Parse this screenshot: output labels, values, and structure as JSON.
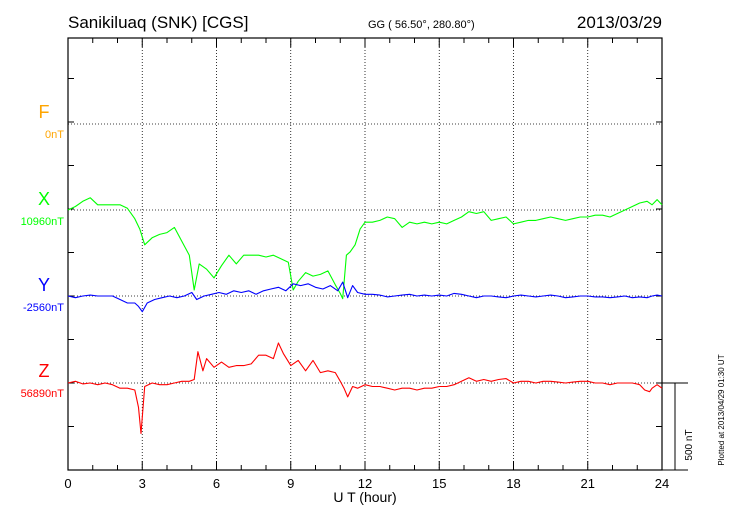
{
  "header": {
    "station": "Sanikiluaq (SNK)  [CGS]",
    "coords": "GG ( 56.50°, 280.80°)",
    "date": "2013/03/29"
  },
  "footer": {
    "plotted": "Plotted at 2013/04/29 01:30 UT",
    "scale_label": "500 nT"
  },
  "chart_data": {
    "type": "line",
    "xlabel": "U T (hour)",
    "xlim": [
      0,
      24
    ],
    "xticks": [
      0,
      3,
      6,
      9,
      12,
      15,
      18,
      21,
      24
    ],
    "grid": true,
    "scale_bar_nT": 500,
    "series": [
      {
        "name": "F",
        "baseline_label": "0nT",
        "color": "#ffa500",
        "baseline_nT": 0,
        "x": [],
        "y": []
      },
      {
        "name": "X",
        "baseline_label": "10960nT",
        "color": "#00ff00",
        "baseline_nT": 10960,
        "x": [
          0,
          0.3,
          0.6,
          0.9,
          1.2,
          1.5,
          1.8,
          2.1,
          2.4,
          2.7,
          2.9,
          3.1,
          3.4,
          3.7,
          4.0,
          4.3,
          4.6,
          4.9,
          5.1,
          5.3,
          5.6,
          5.9,
          6.2,
          6.5,
          6.8,
          7.1,
          7.4,
          7.7,
          8.0,
          8.3,
          8.6,
          8.9,
          9.1,
          9.3,
          9.6,
          9.9,
          10.2,
          10.5,
          10.8,
          11.0,
          11.1,
          11.25,
          11.4,
          11.6,
          11.8,
          12.0,
          12.3,
          12.6,
          12.9,
          13.2,
          13.5,
          13.8,
          14.1,
          14.4,
          14.7,
          15.0,
          15.3,
          15.6,
          15.9,
          16.2,
          16.5,
          16.8,
          17.1,
          17.4,
          17.7,
          18.0,
          18.3,
          18.6,
          18.9,
          19.2,
          19.5,
          19.8,
          20.1,
          20.4,
          20.7,
          21.0,
          21.3,
          21.6,
          21.9,
          22.2,
          22.5,
          22.8,
          23.1,
          23.4,
          23.6,
          23.8,
          24.0
        ],
        "y": [
          10960,
          10980,
          11010,
          11030,
          10990,
          10990,
          10990,
          10990,
          10970,
          10910,
          10850,
          10760,
          10800,
          10820,
          10830,
          10860,
          10780,
          10700,
          10500,
          10650,
          10620,
          10570,
          10640,
          10700,
          10650,
          10700,
          10700,
          10700,
          10690,
          10700,
          10680,
          10660,
          10500,
          10550,
          10600,
          10580,
          10590,
          10610,
          10530,
          10480,
          10450,
          10700,
          10720,
          10760,
          10850,
          10890,
          10890,
          10900,
          10920,
          10910,
          10860,
          10890,
          10880,
          10890,
          10880,
          10890,
          10880,
          10900,
          10920,
          10950,
          10940,
          10950,
          10900,
          10910,
          10920,
          10880,
          10890,
          10900,
          10900,
          10910,
          10920,
          10910,
          10900,
          10910,
          10920,
          10920,
          10930,
          10930,
          10920,
          10940,
          10960,
          10980,
          11000,
          11010,
          10990,
          11020,
          10990
        ]
      },
      {
        "name": "Y",
        "baseline_label": "-2560nT",
        "color": "#0000ff",
        "baseline_nT": -2560,
        "x": [
          0,
          0.3,
          0.6,
          0.9,
          1.2,
          1.5,
          1.8,
          2.1,
          2.4,
          2.7,
          2.85,
          3.0,
          3.2,
          3.5,
          3.8,
          4.1,
          4.4,
          4.7,
          5.0,
          5.2,
          5.5,
          5.8,
          6.1,
          6.4,
          6.7,
          7.0,
          7.3,
          7.6,
          7.9,
          8.2,
          8.5,
          8.8,
          9.1,
          9.4,
          9.7,
          10.0,
          10.3,
          10.6,
          10.9,
          11.1,
          11.3,
          11.5,
          11.7,
          12.0,
          12.3,
          12.6,
          12.9,
          13.2,
          13.5,
          13.8,
          14.1,
          14.4,
          14.7,
          15.0,
          15.3,
          15.6,
          15.9,
          16.2,
          16.5,
          16.8,
          17.1,
          17.4,
          17.7,
          18.0,
          18.3,
          18.6,
          18.9,
          19.2,
          19.5,
          19.8,
          20.1,
          20.4,
          20.7,
          21.0,
          21.3,
          21.6,
          21.9,
          22.2,
          22.5,
          22.8,
          23.1,
          23.4,
          23.6,
          23.8,
          24.0
        ],
        "y": [
          -2560,
          -2570,
          -2560,
          -2555,
          -2560,
          -2560,
          -2560,
          -2580,
          -2600,
          -2600,
          -2620,
          -2650,
          -2600,
          -2580,
          -2570,
          -2560,
          -2570,
          -2560,
          -2540,
          -2580,
          -2560,
          -2550,
          -2540,
          -2550,
          -2530,
          -2540,
          -2530,
          -2550,
          -2530,
          -2520,
          -2510,
          -2530,
          -2490,
          -2500,
          -2490,
          -2510,
          -2520,
          -2500,
          -2530,
          -2480,
          -2570,
          -2500,
          -2540,
          -2550,
          -2550,
          -2555,
          -2565,
          -2560,
          -2555,
          -2550,
          -2560,
          -2555,
          -2560,
          -2555,
          -2560,
          -2545,
          -2550,
          -2560,
          -2570,
          -2560,
          -2560,
          -2565,
          -2570,
          -2560,
          -2555,
          -2560,
          -2565,
          -2560,
          -2555,
          -2560,
          -2570,
          -2565,
          -2560,
          -2560,
          -2565,
          -2565,
          -2570,
          -2565,
          -2560,
          -2570,
          -2565,
          -2570,
          -2560,
          -2555,
          -2560
        ]
      },
      {
        "name": "Z",
        "baseline_label": "56890nT",
        "color": "#ff0000",
        "baseline_nT": 56890,
        "x": [
          0,
          0.3,
          0.6,
          0.9,
          1.2,
          1.5,
          1.8,
          2.1,
          2.4,
          2.7,
          2.85,
          2.95,
          3.1,
          3.4,
          3.7,
          4.0,
          4.3,
          4.6,
          4.9,
          5.1,
          5.25,
          5.45,
          5.6,
          5.9,
          6.2,
          6.5,
          6.8,
          7.1,
          7.4,
          7.7,
          8.0,
          8.3,
          8.5,
          8.7,
          9.0,
          9.3,
          9.6,
          9.9,
          10.2,
          10.5,
          10.8,
          11.0,
          11.15,
          11.3,
          11.5,
          11.7,
          12.0,
          12.3,
          12.6,
          12.9,
          13.2,
          13.5,
          13.8,
          14.1,
          14.4,
          14.7,
          15.0,
          15.3,
          15.6,
          15.9,
          16.2,
          16.5,
          16.8,
          17.1,
          17.4,
          17.7,
          18.0,
          18.3,
          18.6,
          18.9,
          19.2,
          19.5,
          19.8,
          20.1,
          20.4,
          20.7,
          21.0,
          21.3,
          21.6,
          21.9,
          22.2,
          22.5,
          22.8,
          23.1,
          23.3,
          23.5,
          23.6,
          23.8,
          24.0
        ],
        "y": [
          56890,
          56900,
          56885,
          56890,
          56880,
          56890,
          56880,
          56860,
          56860,
          56850,
          56750,
          56600,
          56870,
          56890,
          56880,
          56880,
          56890,
          56900,
          56900,
          56910,
          57070,
          56960,
          57030,
          56980,
          57010,
          56980,
          56990,
          56990,
          57000,
          57050,
          57050,
          57030,
          57120,
          57060,
          56990,
          57020,
          56960,
          57020,
          56950,
          56960,
          56950,
          56900,
          56860,
          56810,
          56870,
          56860,
          56880,
          56870,
          56870,
          56860,
          56850,
          56860,
          56860,
          56850,
          56860,
          56860,
          56870,
          56870,
          56880,
          56900,
          56920,
          56900,
          56910,
          56900,
          56910,
          56915,
          56890,
          56900,
          56900,
          56890,
          56900,
          56900,
          56895,
          56890,
          56895,
          56900,
          56900,
          56890,
          56890,
          56880,
          56890,
          56890,
          56890,
          56880,
          56850,
          56840,
          56860,
          56880,
          56860
        ]
      }
    ]
  }
}
